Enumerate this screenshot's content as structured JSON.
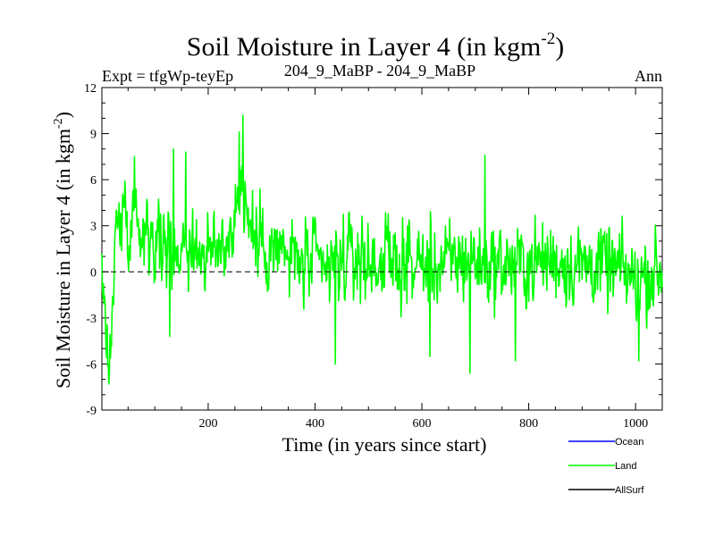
{
  "colors": {
    "land": "#00ff00",
    "ocean": "#0000ff",
    "allsurf": "#000000",
    "axis": "#000000",
    "background": "#ffffff"
  },
  "chart_data": {
    "type": "line",
    "title_main": "Soil Moisture in Layer 4 (in kgm",
    "title_sup": "-2",
    "title_end": ")",
    "subtitle_left": "Expt = tfgWp-teyEp",
    "subtitle_center": "204_9_MaBP - 204_9_MaBP",
    "subtitle_right": "Ann",
    "xlabel": "Time (in years since start)",
    "ylabel_main": "Soil Moisture in Layer 4 (in kgm",
    "ylabel_sup": "-2",
    "ylabel_end": ")",
    "xlim": [
      1,
      1050
    ],
    "ylim": [
      -9,
      12
    ],
    "xticks": [
      200,
      400,
      600,
      800,
      1000
    ],
    "xtick_labels": [
      "200",
      "400",
      "600",
      "800",
      "1000"
    ],
    "yticks": [
      -9,
      -6,
      -3,
      0,
      3,
      6,
      9,
      12
    ],
    "ytick_labels": [
      "-9",
      "-6",
      "-3",
      "0",
      "3",
      "6",
      "9",
      "12"
    ],
    "zero_line": 0,
    "legend": [
      {
        "name": "Ocean",
        "color": "#0000ff"
      },
      {
        "name": "Land",
        "color": "#00ff00"
      },
      {
        "name": "AllSurf",
        "color": "#000000"
      }
    ],
    "series": [
      {
        "name": "Land",
        "n_years": 1050,
        "anchors": [
          [
            1,
            0.5
          ],
          [
            5,
            -1.5
          ],
          [
            10,
            -5
          ],
          [
            14,
            -7.3
          ],
          [
            20,
            -1
          ],
          [
            30,
            3
          ],
          [
            40,
            4
          ],
          [
            60,
            3.5
          ],
          [
            80,
            3
          ],
          [
            100,
            2.5
          ],
          [
            120,
            1.5
          ],
          [
            140,
            1.5
          ],
          [
            160,
            2
          ],
          [
            180,
            1.5
          ],
          [
            200,
            1
          ],
          [
            220,
            1.5
          ],
          [
            240,
            2.5
          ],
          [
            255,
            4.5
          ],
          [
            262,
            6.5
          ],
          [
            270,
            4
          ],
          [
            290,
            2
          ],
          [
            320,
            1.5
          ],
          [
            350,
            1
          ],
          [
            380,
            0.5
          ],
          [
            400,
            0.5
          ],
          [
            420,
            0
          ],
          [
            440,
            0.5
          ],
          [
            460,
            0.8
          ],
          [
            480,
            1
          ],
          [
            500,
            0.5
          ],
          [
            530,
            0.8
          ],
          [
            560,
            0.5
          ],
          [
            600,
            0.5
          ],
          [
            640,
            0.5
          ],
          [
            680,
            0.8
          ],
          [
            700,
            0.8
          ],
          [
            720,
            0.5
          ],
          [
            760,
            0.5
          ],
          [
            800,
            0.5
          ],
          [
            840,
            0.8
          ],
          [
            880,
            0.5
          ],
          [
            920,
            0.5
          ],
          [
            960,
            0.2
          ],
          [
            1000,
            -0.5
          ],
          [
            1030,
            0
          ],
          [
            1050,
            0
          ]
        ],
        "noise_amplitude": 1.9,
        "spikes": [
          [
            14,
            -7.3
          ],
          [
            62,
            7.5
          ],
          [
            135,
            8
          ],
          [
            158,
            7.8
          ],
          [
            258,
            9.1
          ],
          [
            265,
            10.2
          ],
          [
            438,
            -6
          ],
          [
            615,
            -5.5
          ],
          [
            690,
            -6.6
          ],
          [
            718,
            7.6
          ],
          [
            775,
            -5.8
          ],
          [
            1006,
            -5.8
          ],
          [
            128,
            -4.2
          ]
        ]
      }
    ]
  }
}
